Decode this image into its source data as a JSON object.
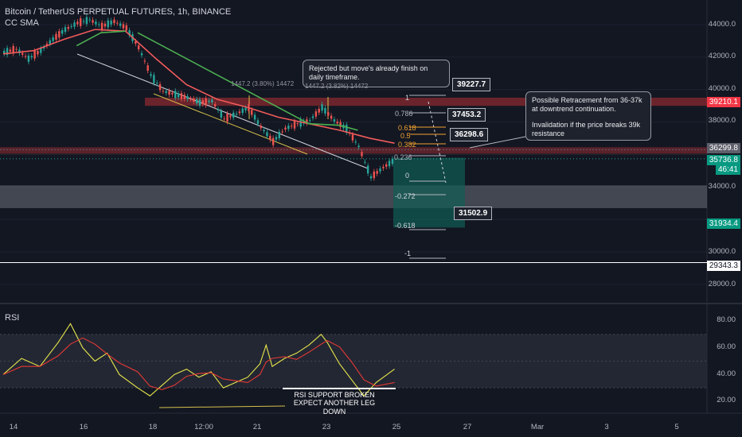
{
  "header": {
    "title": "Bitcoin / TetherUS PERPETUAL FUTURES, 1h, BINANCE",
    "indicator": "CC SMA",
    "rsi_label": "RSI"
  },
  "callouts": {
    "rejected": "Rejected but move's already finish on daily timeframe.",
    "retracement_1": "Possible Retracement from 36-37k at downtrend continuation.",
    "retracement_2": "Invalidation if the price breaks 39k resistance"
  },
  "price_boxes": [
    "39227.7",
    "37453.2",
    "36298.6",
    "31502.9"
  ],
  "measure_labels": {
    "left": "1447.2 (3.80%) 14472",
    "right": "1447.2 (3.82%) 14472"
  },
  "fib_levels": [
    "1",
    "0.786",
    "0.618",
    "0.5",
    "0.382",
    "0.236",
    "0",
    "-0.272",
    "-0.618",
    "-1"
  ],
  "rsi_note": [
    "RSI SUPPORT BROKEN",
    "EXPECT ANOTHER LEG DOWN"
  ],
  "price_tags": [
    {
      "text": "39210.1",
      "bg": "#f23645",
      "fg": "#ffffff"
    },
    {
      "text": "36299.8",
      "bg": "#5d606b",
      "fg": "#ffffff"
    },
    {
      "text": "35736.8",
      "bg": "#089981",
      "fg": "#ffffff"
    },
    {
      "text": "46:41",
      "bg": "#089981",
      "fg": "#ffffff"
    },
    {
      "text": "31934.4",
      "bg": "#089981",
      "fg": "#ffffff"
    },
    {
      "text": "29343.3",
      "bg": "#ffffff",
      "fg": "#131722"
    }
  ],
  "colors": {
    "background": "#131722",
    "candle_up": "#26a69a",
    "candle_down": "#ef5350",
    "sma_fast": "#f05b5b",
    "sma_slow": "#4caf50",
    "resistance_zone": "#8b2a30",
    "support_zone": "#6b6f7a",
    "target_zone": "#0f5e55",
    "rsi_line": "#e6e64a",
    "rsi_ma": "#e53935",
    "trendline_yellow": "#d4c04a",
    "trendline_white": "#d1d4dc"
  },
  "chart_data": {
    "type": "candlestick",
    "title": "Bitcoin / TetherUS PERPETUAL FUTURES, 1h, BINANCE",
    "price_axis": {
      "ticks": [
        44000,
        42000,
        40000,
        38000,
        36000,
        34000,
        32000,
        30000,
        28000
      ],
      "tick_labels": [
        "44000.0",
        "42000.0",
        "40000.0",
        "38000.0",
        "36000.0",
        "34000.0",
        "32000.0",
        "30000.0",
        "28000.0"
      ]
    },
    "rsi_axis": {
      "ticks": [
        80,
        60,
        40,
        20
      ],
      "tick_labels": [
        "80.00",
        "60.00",
        "40.00",
        "20.00"
      ],
      "band": [
        30,
        70
      ]
    },
    "time_axis_labels": [
      "14",
      "16",
      "18",
      "12:00",
      "21",
      "23",
      "25",
      "27",
      "Mar",
      "3",
      "5"
    ],
    "price_path": [
      [
        0,
        42300
      ],
      [
        4,
        42500
      ],
      [
        8,
        41900
      ],
      [
        12,
        42400
      ],
      [
        16,
        43100
      ],
      [
        20,
        43700
      ],
      [
        24,
        44100
      ],
      [
        28,
        44300
      ],
      [
        32,
        43900
      ],
      [
        36,
        44200
      ],
      [
        40,
        43800
      ],
      [
        44,
        42600
      ],
      [
        48,
        40900
      ],
      [
        52,
        39900
      ],
      [
        56,
        39700
      ],
      [
        60,
        39500
      ],
      [
        64,
        39200
      ],
      [
        68,
        39300
      ],
      [
        72,
        38200
      ],
      [
        76,
        38500
      ],
      [
        80,
        38900
      ],
      [
        84,
        37700
      ],
      [
        88,
        36800
      ],
      [
        92,
        37600
      ],
      [
        96,
        37900
      ],
      [
        100,
        38100
      ],
      [
        104,
        38900
      ],
      [
        108,
        38100
      ],
      [
        112,
        37600
      ],
      [
        116,
        36500
      ],
      [
        120,
        34600
      ],
      [
        124,
        35200
      ],
      [
        128,
        35700
      ]
    ],
    "sma_fast": [
      [
        0,
        42200
      ],
      [
        10,
        42400
      ],
      [
        20,
        43100
      ],
      [
        30,
        43700
      ],
      [
        40,
        43600
      ],
      [
        50,
        41900
      ],
      [
        60,
        40300
      ],
      [
        70,
        39400
      ],
      [
        80,
        38900
      ],
      [
        90,
        38300
      ],
      [
        100,
        37900
      ],
      [
        110,
        37500
      ],
      [
        120,
        37000
      ],
      [
        128,
        36700
      ]
    ],
    "sma_slow": [
      [
        24,
        42700
      ],
      [
        32,
        43500
      ],
      [
        40,
        43600
      ],
      [
        44,
        43500
      ],
      [
        100,
        37900
      ],
      [
        110,
        37800
      ],
      [
        116,
        37500
      ]
    ],
    "rsi_path": [
      [
        0,
        40
      ],
      [
        6,
        52
      ],
      [
        12,
        46
      ],
      [
        18,
        64
      ],
      [
        22,
        78
      ],
      [
        26,
        60
      ],
      [
        30,
        50
      ],
      [
        34,
        56
      ],
      [
        38,
        40
      ],
      [
        44,
        30
      ],
      [
        48,
        24
      ],
      [
        52,
        32
      ],
      [
        56,
        40
      ],
      [
        60,
        44
      ],
      [
        64,
        38
      ],
      [
        68,
        42
      ],
      [
        72,
        30
      ],
      [
        76,
        34
      ],
      [
        80,
        38
      ],
      [
        84,
        48
      ],
      [
        86,
        62
      ],
      [
        88,
        46
      ],
      [
        92,
        52
      ],
      [
        96,
        56
      ],
      [
        100,
        62
      ],
      [
        104,
        70
      ],
      [
        106,
        64
      ],
      [
        110,
        48
      ],
      [
        114,
        36
      ],
      [
        118,
        24
      ],
      [
        122,
        34
      ],
      [
        128,
        44
      ]
    ],
    "levels": {
      "resistance_zone": [
        39000,
        39500
      ],
      "supply_zone": [
        36050,
        36450
      ],
      "support_zone": [
        32700,
        34100
      ],
      "target_zone_top": 35800,
      "target_zone_bottom": 31502.9,
      "horizontal_line": 29343.3
    },
    "fibonacci": {
      "1": 39227.7,
      "0.786": 37453.2,
      "0.5": 36298.6,
      "-0.618": 31502.9
    }
  }
}
